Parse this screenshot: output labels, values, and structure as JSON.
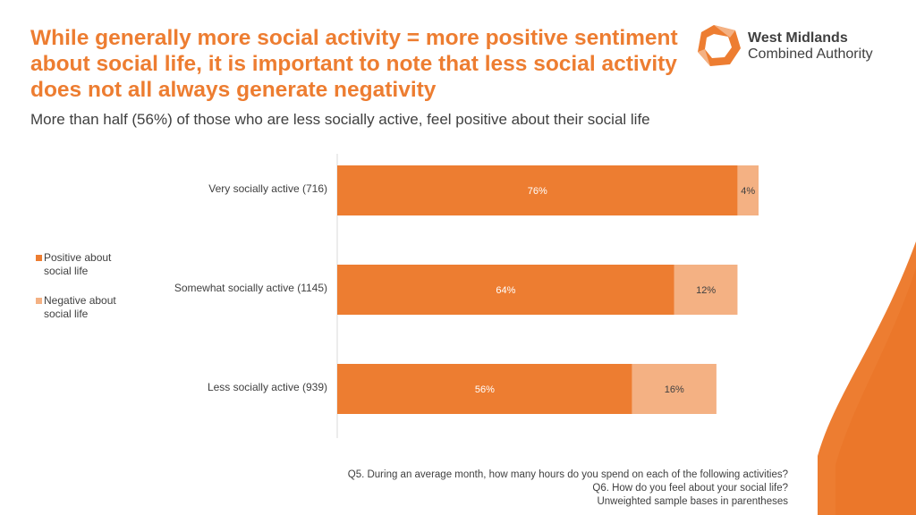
{
  "header": {
    "title": "While generally more social activity = more positive sentiment about social life, it is important to note that less social activity does not all always generate negativity",
    "subtitle": "More than half (56%) of those who are less socially active, feel positive about their social life"
  },
  "logo": {
    "line1": "West Midlands",
    "line2": "Combined Authority"
  },
  "colors": {
    "accent": "#ED7D31",
    "positive": "#ED7D31",
    "negative": "#F4B183",
    "text": "#404040"
  },
  "chart_data": {
    "type": "bar",
    "orientation": "horizontal",
    "stacked": true,
    "categories": [
      "Very socially active (716)",
      "Somewhat socially active (1145)",
      "Less socially active (939)"
    ],
    "series": [
      {
        "name": "Positive about social life",
        "values": [
          76,
          64,
          56
        ]
      },
      {
        "name": "Negative about social life",
        "values": [
          4,
          12,
          16
        ]
      }
    ],
    "value_labels": [
      [
        "76%",
        "64%",
        "56%"
      ],
      [
        "4%",
        "12%",
        "16%"
      ]
    ],
    "xlim": [
      0,
      80
    ],
    "legend_position": "left",
    "grid": false
  },
  "legend": {
    "items": [
      {
        "label": "Positive about social life"
      },
      {
        "label": "Negative about social life"
      }
    ]
  },
  "footnotes": [
    "Q5. During an average month, how many hours do you spend on each of the following activities?",
    "Q6. How do you feel about your social life?",
    "Unweighted sample bases in parentheses"
  ]
}
